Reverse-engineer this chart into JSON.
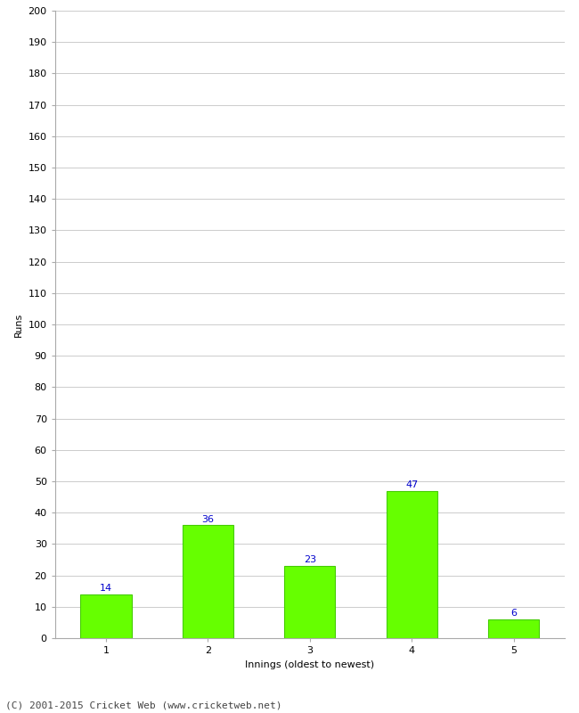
{
  "categories": [
    1,
    2,
    3,
    4,
    5
  ],
  "values": [
    14,
    36,
    23,
    47,
    6
  ],
  "bar_color": "#66ff00",
  "bar_edge_color": "#44cc00",
  "value_label_color": "#0000cc",
  "xlabel": "Innings (oldest to newest)",
  "ylabel": "Runs",
  "ylim": [
    0,
    200
  ],
  "ytick_step": 10,
  "background_color": "#ffffff",
  "grid_color": "#cccccc",
  "footer": "(C) 2001-2015 Cricket Web (www.cricketweb.net)",
  "value_fontsize": 8,
  "axis_label_fontsize": 8,
  "tick_fontsize": 8,
  "footer_fontsize": 8,
  "bar_width": 0.5
}
